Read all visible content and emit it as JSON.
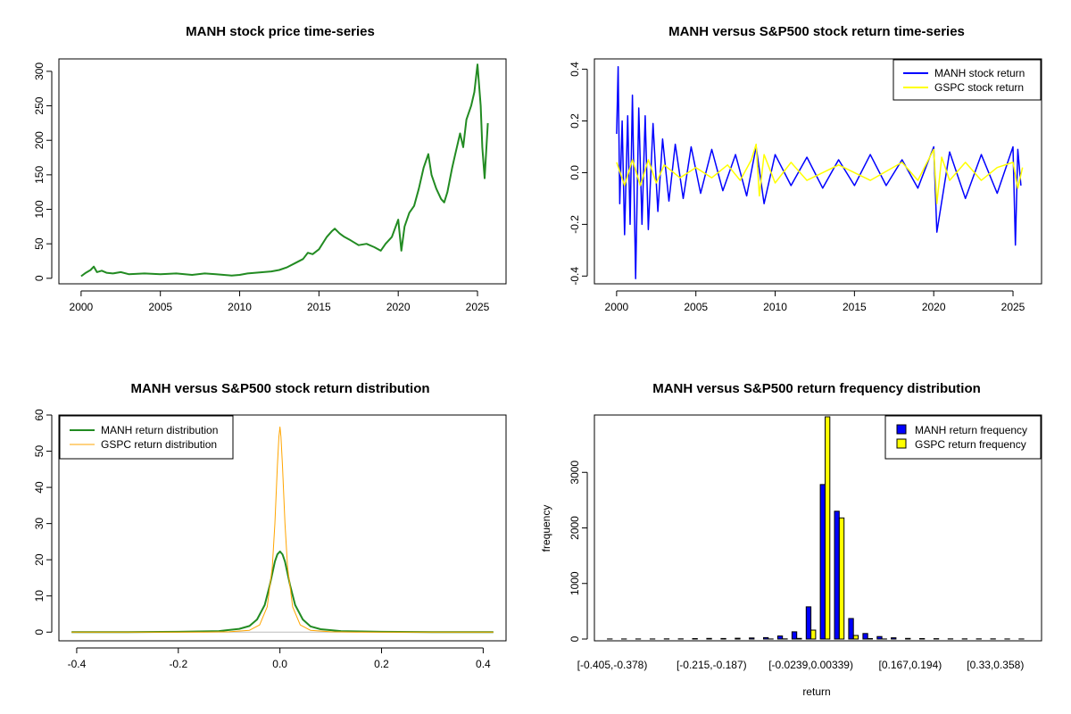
{
  "chart_data": [
    {
      "type": "line",
      "title": "MANH stock price time-series",
      "xlabel": "",
      "ylabel": "",
      "xlim": [
        1998.6,
        2026.8
      ],
      "ylim": [
        -8,
        318
      ],
      "x_ticks": [
        2000,
        2005,
        2010,
        2015,
        2020,
        2025
      ],
      "x_tick_labels": [
        "2000",
        "2005",
        "2010",
        "2015",
        "2020",
        "2025"
      ],
      "y_ticks": [
        0,
        50,
        100,
        150,
        200,
        250,
        300
      ],
      "y_tick_labels": [
        "0",
        "50",
        "100",
        "150",
        "200",
        "250",
        "300"
      ],
      "series": [
        {
          "name": "MANH price",
          "color": "#228B22",
          "x": [
            2000.0,
            2000.3,
            2000.6,
            2000.8,
            2001.0,
            2001.3,
            2001.6,
            2002.0,
            2002.5,
            2003.0,
            2004.0,
            2005.0,
            2006.0,
            2007.0,
            2007.8,
            2008.5,
            2009.0,
            2009.5,
            2010.0,
            2010.5,
            2011.0,
            2011.5,
            2012.0,
            2012.5,
            2013.0,
            2013.5,
            2014.0,
            2014.3,
            2014.6,
            2015.0,
            2015.5,
            2015.8,
            2016.0,
            2016.3,
            2016.6,
            2017.0,
            2017.5,
            2018.0,
            2018.5,
            2018.9,
            2019.2,
            2019.6,
            2020.0,
            2020.2,
            2020.4,
            2020.7,
            2021.0,
            2021.3,
            2021.6,
            2021.9,
            2022.1,
            2022.4,
            2022.7,
            2022.9,
            2023.1,
            2023.4,
            2023.6,
            2023.9,
            2024.1,
            2024.3,
            2024.6,
            2024.8,
            2025.0,
            2025.2,
            2025.3,
            2025.45,
            2025.55,
            2025.65
          ],
          "y": [
            3,
            8,
            12,
            17,
            9,
            11,
            8,
            7,
            9,
            6,
            7,
            6,
            7,
            5,
            7,
            6,
            5,
            4,
            5,
            7,
            8,
            9,
            10,
            12,
            16,
            22,
            28,
            37,
            35,
            42,
            60,
            68,
            72,
            65,
            60,
            55,
            48,
            50,
            45,
            40,
            50,
            60,
            85,
            40,
            75,
            95,
            105,
            130,
            160,
            180,
            150,
            130,
            115,
            110,
            125,
            160,
            180,
            210,
            190,
            230,
            250,
            270,
            310,
            250,
            190,
            145,
            185,
            225
          ]
        }
      ]
    },
    {
      "type": "line",
      "title": "MANH versus S&P500 stock return time-series",
      "xlabel": "",
      "ylabel": "",
      "xlim": [
        1998.6,
        2026.8
      ],
      "ylim": [
        -0.43,
        0.44
      ],
      "x_ticks": [
        2000,
        2005,
        2010,
        2015,
        2020,
        2025
      ],
      "x_tick_labels": [
        "2000",
        "2005",
        "2010",
        "2015",
        "2020",
        "2025"
      ],
      "y_ticks": [
        -0.4,
        -0.2,
        0.0,
        0.2,
        0.4
      ],
      "y_tick_labels": [
        "-0.4",
        "-0.2",
        "0.0",
        "0.2",
        "0.4"
      ],
      "legend": {
        "position": "top-right",
        "entries": [
          "MANH stock return",
          "GSPC stock return"
        ]
      },
      "series": [
        {
          "name": "MANH stock return",
          "color": "#0000FF",
          "x": [
            2000.0,
            2000.1,
            2000.2,
            2000.35,
            2000.5,
            2000.7,
            2000.85,
            2001.0,
            2001.2,
            2001.4,
            2001.6,
            2001.8,
            2002.0,
            2002.3,
            2002.6,
            2002.9,
            2003.3,
            2003.7,
            2004.2,
            2004.7,
            2005.3,
            2006.0,
            2006.7,
            2007.5,
            2008.2,
            2008.8,
            2009.3,
            2010.0,
            2011.0,
            2012.0,
            2013.0,
            2014.0,
            2015.0,
            2016.0,
            2017.0,
            2018.0,
            2019.0,
            2020.0,
            2020.2,
            2021.0,
            2022.0,
            2023.0,
            2024.0,
            2025.0,
            2025.15,
            2025.3,
            2025.5
          ],
          "y": [
            0.15,
            0.41,
            -0.12,
            0.2,
            -0.24,
            0.22,
            -0.2,
            0.3,
            -0.41,
            0.25,
            -0.2,
            0.22,
            -0.22,
            0.19,
            -0.15,
            0.13,
            -0.11,
            0.11,
            -0.1,
            0.1,
            -0.08,
            0.09,
            -0.07,
            0.07,
            -0.09,
            0.1,
            -0.12,
            0.07,
            -0.05,
            0.06,
            -0.06,
            0.05,
            -0.05,
            0.07,
            -0.05,
            0.05,
            -0.06,
            0.1,
            -0.23,
            0.08,
            -0.1,
            0.07,
            -0.08,
            0.1,
            -0.28,
            0.09,
            -0.05
          ]
        },
        {
          "name": "GSPC stock return",
          "color": "#FFFF00",
          "x": [
            2000.0,
            2000.5,
            2001.0,
            2001.5,
            2002.0,
            2002.5,
            2003.0,
            2004.0,
            2005.0,
            2006.0,
            2007.0,
            2007.8,
            2008.5,
            2008.8,
            2009.0,
            2009.3,
            2010.0,
            2011.0,
            2012.0,
            2014.0,
            2016.0,
            2018.0,
            2019.0,
            2020.0,
            2020.2,
            2020.5,
            2021.0,
            2022.0,
            2023.0,
            2024.0,
            2025.0,
            2025.3,
            2025.6
          ],
          "y": [
            0.04,
            -0.05,
            0.05,
            -0.05,
            0.05,
            -0.04,
            0.03,
            -0.02,
            0.02,
            -0.02,
            0.03,
            -0.03,
            0.05,
            0.11,
            -0.09,
            0.07,
            -0.04,
            0.04,
            -0.03,
            0.03,
            -0.03,
            0.04,
            -0.03,
            0.09,
            -0.12,
            0.06,
            -0.03,
            0.04,
            -0.03,
            0.02,
            0.04,
            -0.06,
            0.02
          ]
        }
      ]
    },
    {
      "type": "line",
      "title": "MANH versus S&P500 stock return distribution",
      "xlabel": "",
      "ylabel": "",
      "xlim": [
        -0.435,
        0.445
      ],
      "ylim": [
        -2.4,
        60
      ],
      "x_ticks": [
        -0.4,
        -0.2,
        0.0,
        0.2,
        0.4
      ],
      "x_tick_labels": [
        "-0.4",
        "-0.2",
        "0.0",
        "0.2",
        "0.4"
      ],
      "y_ticks": [
        0,
        10,
        20,
        30,
        40,
        50,
        60
      ],
      "y_tick_labels": [
        "0",
        "10",
        "20",
        "30",
        "40",
        "50",
        "60"
      ],
      "legend": {
        "position": "top-left",
        "entries": [
          "MANH return distribution",
          "GSPC return distribution"
        ]
      },
      "series": [
        {
          "name": "MANH return distribution",
          "color": "#228B22",
          "x": [
            -0.41,
            -0.3,
            -0.2,
            -0.12,
            -0.08,
            -0.06,
            -0.045,
            -0.03,
            -0.02,
            -0.01,
            -0.005,
            0.0,
            0.005,
            0.01,
            0.02,
            0.03,
            0.045,
            0.06,
            0.08,
            0.12,
            0.2,
            0.3,
            0.42
          ],
          "y": [
            0,
            0,
            0.1,
            0.3,
            0.9,
            1.7,
            3.5,
            7.5,
            13,
            19.5,
            21.5,
            22.3,
            21.5,
            19.5,
            13,
            7.5,
            3.5,
            1.6,
            0.8,
            0.3,
            0.1,
            0,
            0
          ]
        },
        {
          "name": "GSPC return distribution",
          "color": "#FFA500",
          "x": [
            -0.41,
            -0.15,
            -0.1,
            -0.06,
            -0.04,
            -0.025,
            -0.015,
            -0.01,
            -0.005,
            -0.002,
            0.0,
            0.002,
            0.005,
            0.01,
            0.015,
            0.025,
            0.04,
            0.06,
            0.1,
            0.15,
            0.42
          ],
          "y": [
            0,
            0,
            0.1,
            0.5,
            2,
            7,
            18,
            30,
            46,
            54,
            56.7,
            54,
            46,
            30,
            18,
            7,
            2,
            0.5,
            0.1,
            0,
            0
          ]
        }
      ]
    },
    {
      "type": "bar",
      "title": "MANH versus S&P500 return frequency distribution",
      "xlabel": "return",
      "ylabel": "frequency",
      "ylim": [
        0,
        4000
      ],
      "y_ticks": [
        0,
        1000,
        2000,
        3000
      ],
      "y_tick_labels": [
        "0",
        "1000",
        "2000",
        "3000"
      ],
      "x_tick_labels": [
        "[-0.405,-0.378)",
        "[-0.215,-0.187)",
        "[-0.0239,0.00339)",
        "[0.167,0.194)",
        "[0.33,0.358)"
      ],
      "x_tick_positions": [
        0,
        7,
        14,
        21,
        27
      ],
      "legend": {
        "position": "top-right",
        "entries": [
          "MANH return frequency",
          "GSPC return frequency"
        ]
      },
      "series": [
        {
          "name": "MANH return frequency",
          "color": "#0000FF",
          "values": [
            2,
            2,
            1,
            1,
            3,
            4,
            8,
            12,
            10,
            14,
            20,
            25,
            55,
            130,
            580,
            2780,
            2300,
            370,
            100,
            45,
            22,
            12,
            8,
            6,
            4,
            3,
            3,
            3,
            2,
            2
          ]
        },
        {
          "name": "GSPC return frequency",
          "color": "#FFFF00",
          "values": [
            0,
            0,
            0,
            0,
            0,
            0,
            0,
            0,
            0,
            0,
            0,
            1,
            3,
            12,
            160,
            4000,
            2180,
            65,
            8,
            2,
            0,
            0,
            0,
            0,
            0,
            0,
            0,
            0,
            0,
            0
          ]
        }
      ]
    }
  ]
}
